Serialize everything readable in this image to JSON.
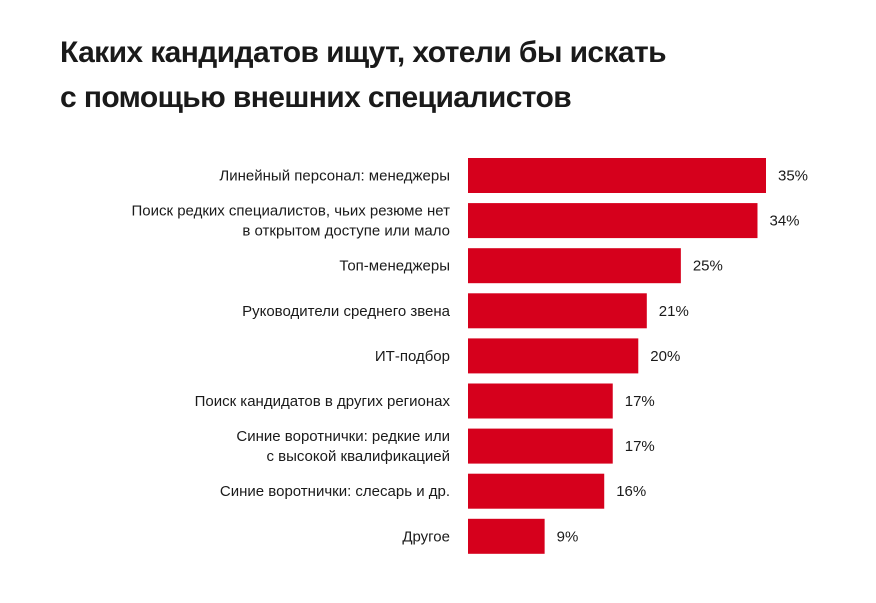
{
  "title_lines": [
    "Каких кандидатов ищут, хотели бы искать",
    "с помощью внешних специалистов"
  ],
  "colors": {
    "bar": "#d6001c",
    "text": "#1a1a1a",
    "background": "#ffffff"
  },
  "chart_data": {
    "type": "bar",
    "orientation": "horizontal",
    "title": "Каких кандидатов ищут, хотели бы искать с помощью внешних специалистов",
    "xlabel": "",
    "ylabel": "",
    "grid": false,
    "legend": "none",
    "xlim": [
      0,
      35
    ],
    "categories": [
      [
        "Линейный персонал: менеджеры"
      ],
      [
        "Поиск редких специалистов, чьих резюме нет",
        "в открытом доступе или мало"
      ],
      [
        "Топ-менеджеры"
      ],
      [
        "Руководители среднего звена"
      ],
      [
        "ИТ-подбор"
      ],
      [
        "Поиск кандидатов в других регионах"
      ],
      [
        "Синие воротнички: редкие или",
        "с высокой квалификацией"
      ],
      [
        "Синие воротнички: слесарь и др."
      ],
      [
        "Другое"
      ]
    ],
    "values": [
      35,
      34,
      25,
      21,
      20,
      17,
      17,
      16,
      9
    ],
    "value_labels": [
      "35%",
      "34%",
      "25%",
      "21%",
      "20%",
      "17%",
      "17%",
      "16%",
      "9%"
    ]
  }
}
